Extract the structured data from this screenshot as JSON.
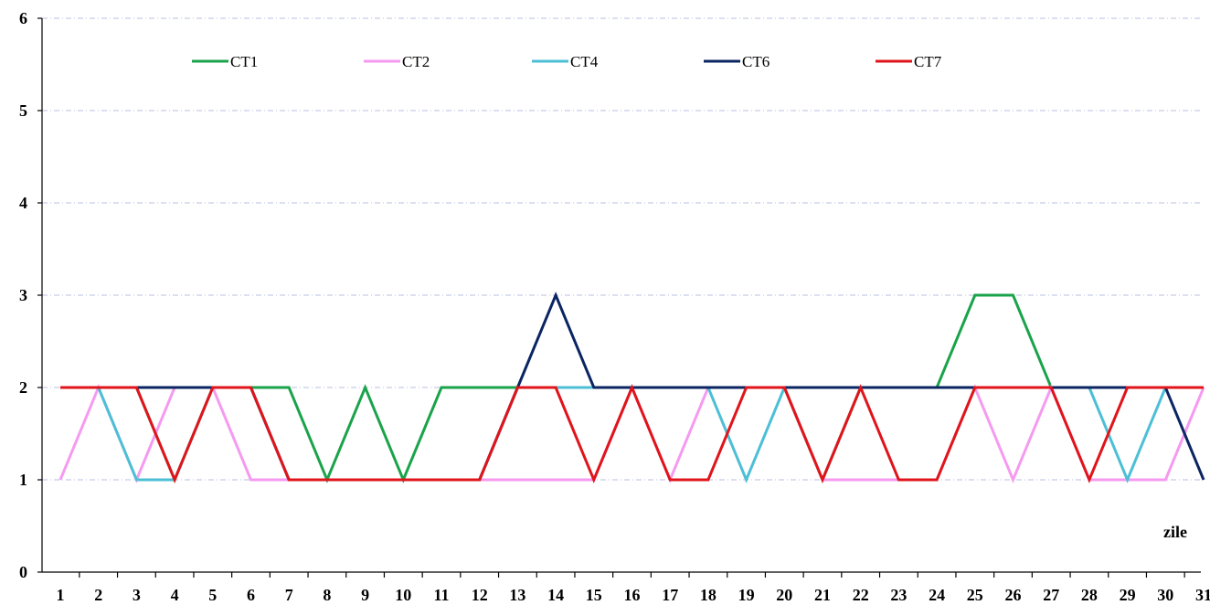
{
  "chart_data": {
    "type": "line",
    "title": "",
    "xlabel": "zile",
    "ylabel": "",
    "ylim": [
      0,
      6
    ],
    "yticks": [
      "0",
      "1",
      "2",
      "3",
      "4",
      "5",
      "6"
    ],
    "categories": [
      "1",
      "2",
      "3",
      "4",
      "5",
      "6",
      "7",
      "8",
      "9",
      "10",
      "11",
      "12",
      "13",
      "14",
      "15",
      "16",
      "17",
      "18",
      "19",
      "20",
      "21",
      "22",
      "23",
      "24",
      "25",
      "26",
      "27",
      "28",
      "29",
      "30",
      "31"
    ],
    "grid": "horizontal dash-dot",
    "legend_position": "top",
    "series": [
      {
        "name": "CT1",
        "color": "#1aa34a",
        "values": [
          2,
          2,
          2,
          1,
          2,
          2,
          2,
          1,
          2,
          1,
          2,
          2,
          2,
          2,
          2,
          2,
          2,
          2,
          2,
          2,
          1,
          2,
          2,
          2,
          3,
          3,
          2,
          2,
          2,
          2,
          2
        ]
      },
      {
        "name": "CT2",
        "color": "#f59af0",
        "values": [
          1,
          2,
          1,
          2,
          2,
          1,
          1,
          1,
          1,
          1,
          1,
          1,
          1,
          1,
          1,
          2,
          1,
          2,
          2,
          2,
          1,
          1,
          1,
          1,
          2,
          1,
          2,
          1,
          1,
          1,
          2
        ]
      },
      {
        "name": "CT4",
        "color": "#4cbfd6",
        "values": [
          2,
          2,
          1,
          1,
          2,
          2,
          1,
          1,
          1,
          1,
          1,
          1,
          2,
          2,
          2,
          2,
          2,
          2,
          1,
          2,
          2,
          2,
          2,
          2,
          2,
          2,
          2,
          2,
          1,
          2,
          2
        ]
      },
      {
        "name": "CT6",
        "color": "#0b2562",
        "values": [
          2,
          2,
          2,
          2,
          2,
          2,
          1,
          1,
          1,
          1,
          1,
          1,
          2,
          3,
          2,
          2,
          2,
          2,
          2,
          2,
          2,
          2,
          2,
          2,
          2,
          2,
          2,
          2,
          2,
          2,
          1
        ]
      },
      {
        "name": "CT7",
        "color": "#e0141b",
        "values": [
          2,
          2,
          2,
          1,
          2,
          2,
          1,
          1,
          1,
          1,
          1,
          1,
          2,
          2,
          1,
          2,
          1,
          1,
          2,
          2,
          1,
          2,
          1,
          1,
          2,
          2,
          2,
          1,
          2,
          2,
          2
        ]
      }
    ]
  }
}
